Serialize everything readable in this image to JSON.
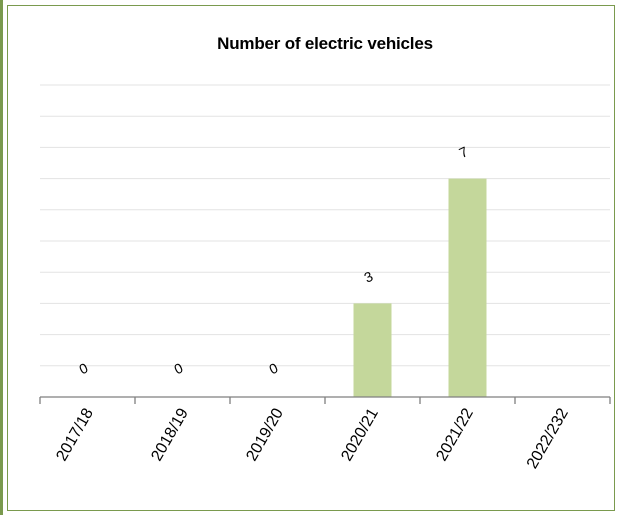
{
  "chart_data": {
    "type": "bar",
    "title": "Number of electric vehicles",
    "categories": [
      "2017/18",
      "2018/19",
      "2019/20",
      "2020/21",
      "2021/22",
      "2022/232"
    ],
    "values": [
      0,
      0,
      0,
      3,
      7,
      null
    ],
    "data_labels": [
      "0",
      "0",
      "0",
      "3",
      "7",
      ""
    ],
    "xlabel": "",
    "ylabel": "",
    "ylim": [
      0,
      10
    ],
    "grid": true,
    "legend": "none",
    "colors": {
      "bar": "#c4d79b",
      "grid": "#e3e3e3",
      "axis": "#7f7f7f",
      "frame": "#7a9a4e"
    }
  }
}
